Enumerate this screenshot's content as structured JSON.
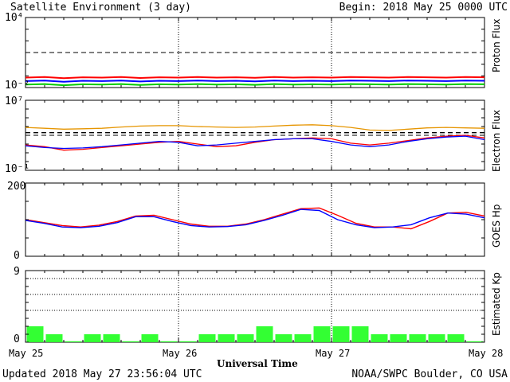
{
  "header": {
    "title": "Satellite Environment (3 day)",
    "begin": "Begin:  2018 May 25 0000 UTC"
  },
  "footer": {
    "updated": "Updated 2018 May 27 23:56:04 UTC",
    "credit": "NOAA/SWPC Boulder, CO USA",
    "xlabel": "Universal Time"
  },
  "chart_data": [
    {
      "type": "line",
      "panel": "proton",
      "ylabel": "Proton Flux",
      "yscale": "log",
      "ylim_exp": [
        -2,
        4
      ],
      "ytick_labels": [
        "10⁴",
        "10⁻²"
      ],
      "threshold_exp": 1,
      "series": [
        {
          "color": "#ff0000",
          "values_exp": [
            -1.15,
            -1.1,
            -1.2,
            -1.12,
            -1.15,
            -1.1,
            -1.18,
            -1.12,
            -1.15,
            -1.1,
            -1.15,
            -1.12,
            -1.17,
            -1.1,
            -1.15,
            -1.12,
            -1.15,
            -1.1,
            -1.12,
            -1.15,
            -1.1,
            -1.12,
            -1.15,
            -1.1,
            -1.12
          ]
        },
        {
          "color": "#0000ff",
          "values_exp": [
            -1.45,
            -1.4,
            -1.5,
            -1.42,
            -1.45,
            -1.4,
            -1.48,
            -1.42,
            -1.45,
            -1.4,
            -1.45,
            -1.42,
            -1.47,
            -1.4,
            -1.45,
            -1.42,
            -1.45,
            -1.4,
            -1.42,
            -1.45,
            -1.4,
            -1.42,
            -1.45,
            -1.4,
            -1.42
          ]
        },
        {
          "color": "#00cc00",
          "values_exp": [
            -1.75,
            -1.7,
            -1.8,
            -1.72,
            -1.75,
            -1.7,
            -1.78,
            -1.72,
            -1.75,
            -1.7,
            -1.75,
            -1.72,
            -1.77,
            -1.7,
            -1.75,
            -1.72,
            -1.75,
            -1.7,
            -1.72,
            -1.75,
            -1.7,
            -1.72,
            -1.75,
            -1.7,
            -1.72
          ]
        }
      ]
    },
    {
      "type": "line",
      "panel": "electron",
      "ylabel": "Electron Flux",
      "yscale": "log",
      "ylim_exp": [
        -1,
        7
      ],
      "ytick_labels": [
        "10⁷",
        "10⁻¹"
      ],
      "threshold_exp": 3,
      "series": [
        {
          "color": "#e69500",
          "values_exp": [
            3.9,
            3.8,
            3.7,
            3.75,
            3.8,
            3.95,
            4.05,
            4.1,
            4.1,
            4.0,
            3.95,
            3.9,
            3.95,
            4.05,
            4.15,
            4.2,
            4.1,
            3.9,
            3.6,
            3.55,
            3.7,
            3.85,
            3.9,
            3.85,
            3.8
          ]
        },
        {
          "color": "#ff0000",
          "values_exp": [
            1.9,
            1.7,
            1.3,
            1.4,
            1.6,
            1.8,
            2.0,
            2.2,
            2.3,
            2.0,
            1.7,
            1.8,
            2.2,
            2.5,
            2.6,
            2.7,
            2.6,
            2.1,
            1.9,
            2.1,
            2.4,
            2.7,
            2.9,
            3.0,
            2.7
          ]
        },
        {
          "color": "#0000ff",
          "values_exp": [
            1.8,
            1.6,
            1.5,
            1.55,
            1.7,
            1.9,
            2.1,
            2.3,
            2.2,
            1.8,
            1.9,
            2.1,
            2.3,
            2.5,
            2.6,
            2.6,
            2.3,
            1.9,
            1.7,
            1.9,
            2.3,
            2.6,
            2.8,
            2.9,
            2.5
          ]
        },
        {
          "color": "#000000",
          "dash": true,
          "values_exp": [
            3.3,
            3.3,
            3.3,
            3.3,
            3.3,
            3.3,
            3.3,
            3.3,
            3.3,
            3.3,
            3.3,
            3.3,
            3.3,
            3.3,
            3.3,
            3.3,
            3.3,
            3.3,
            3.3,
            3.3,
            3.3,
            3.3,
            3.3,
            3.3,
            3.3
          ]
        }
      ]
    },
    {
      "type": "line",
      "panel": "hp",
      "ylabel": "GOES Hp",
      "ylim": [
        0,
        200
      ],
      "ytick_labels": [
        "200",
        "0"
      ],
      "series": [
        {
          "color": "#ff0000",
          "values": [
            100,
            92,
            84,
            80,
            85,
            95,
            110,
            112,
            100,
            88,
            82,
            82,
            88,
            100,
            115,
            130,
            132,
            112,
            90,
            80,
            80,
            75,
            95,
            118,
            120,
            110
          ]
        },
        {
          "color": "#0000ff",
          "values": [
            98,
            90,
            80,
            78,
            82,
            92,
            108,
            108,
            95,
            84,
            80,
            81,
            86,
            98,
            112,
            128,
            125,
            100,
            86,
            78,
            80,
            86,
            105,
            118,
            115,
            105
          ]
        }
      ]
    },
    {
      "type": "bar",
      "panel": "kp",
      "ylabel": "Estimated Kp",
      "ylim": [
        0,
        9
      ],
      "ytick_labels": [
        "9",
        "0"
      ],
      "values": [
        2,
        1,
        0,
        1,
        1,
        0,
        1,
        0,
        0,
        1,
        1,
        1,
        2,
        1,
        1,
        2,
        2,
        2,
        1,
        1,
        1,
        1,
        1,
        0
      ],
      "bar_color": "#33ff33",
      "xtick_labels": [
        "May 25",
        "May 26",
        "May 27",
        "May 28"
      ]
    }
  ]
}
